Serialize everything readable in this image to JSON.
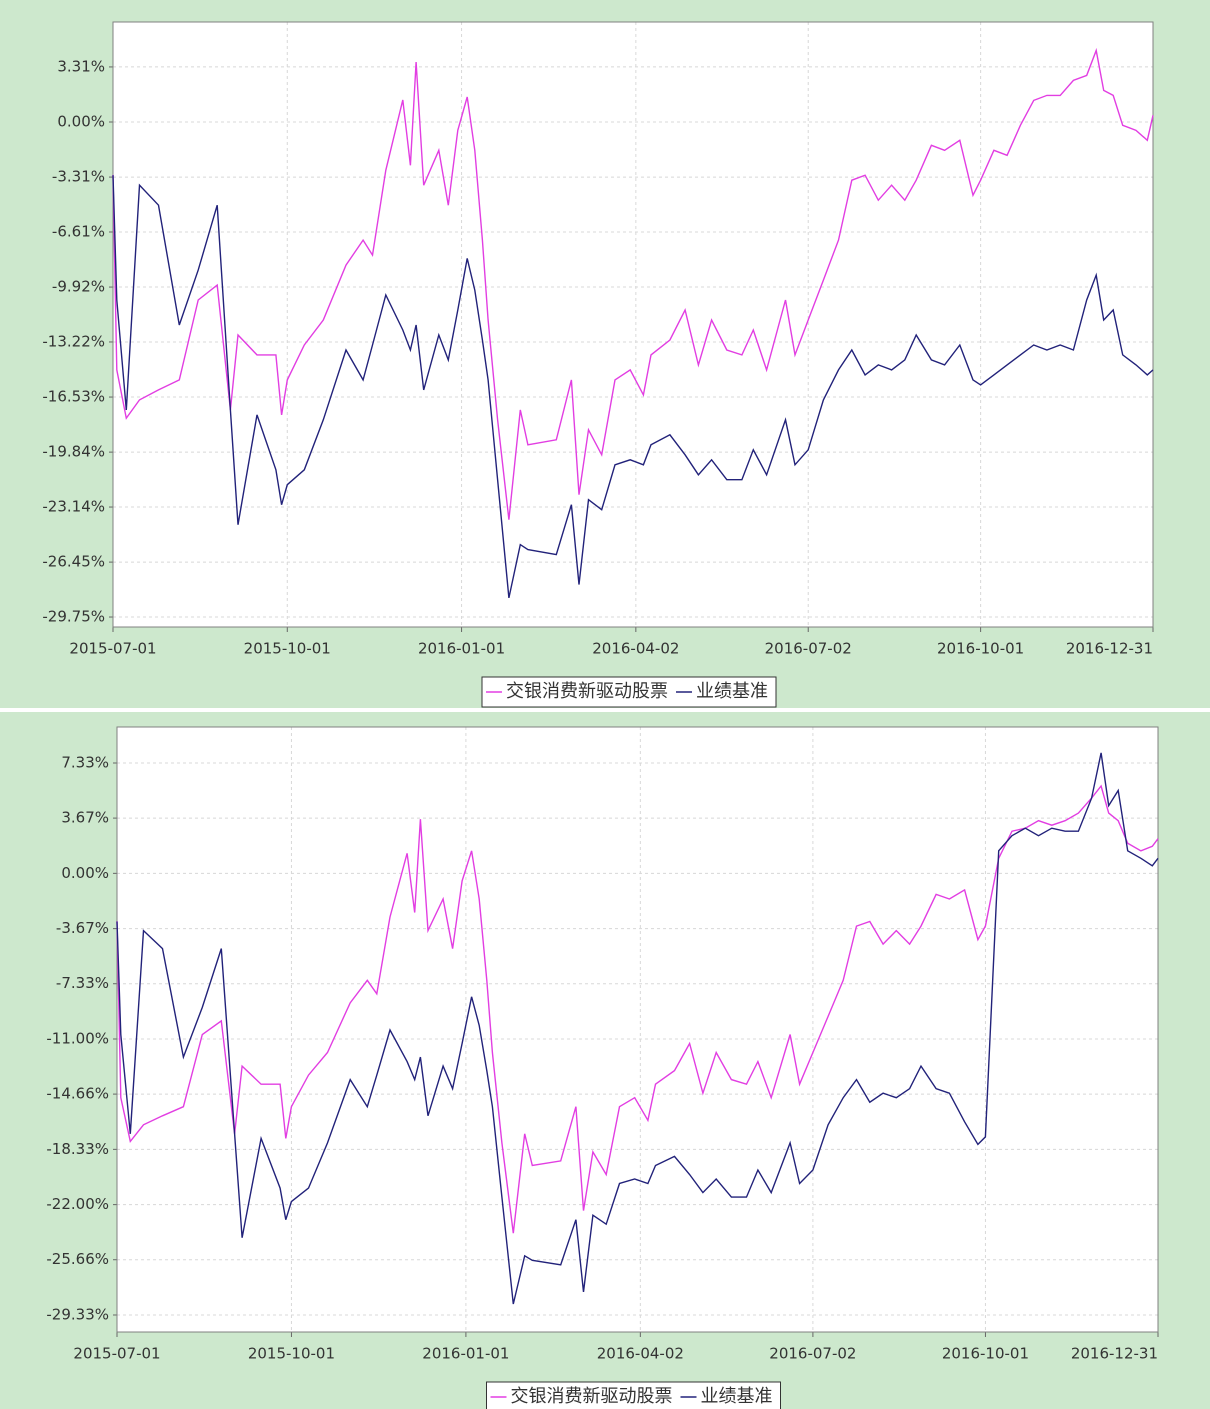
{
  "chart_data": [
    {
      "type": "line",
      "x": [
        "2015-07-01",
        "2015-07-03",
        "2015-07-08",
        "2015-07-15",
        "2015-07-25",
        "2015-08-05",
        "2015-08-15",
        "2015-08-25",
        "2015-09-01",
        "2015-09-05",
        "2015-09-15",
        "2015-09-25",
        "2015-09-28",
        "2015-10-01",
        "2015-10-10",
        "2015-10-20",
        "2015-11-01",
        "2015-11-10",
        "2015-11-15",
        "2015-11-22",
        "2015-12-01",
        "2015-12-05",
        "2015-12-08",
        "2015-12-12",
        "2015-12-20",
        "2015-12-25",
        "2015-12-30",
        "2016-01-04",
        "2016-01-08",
        "2016-01-12",
        "2016-01-15",
        "2016-01-20",
        "2016-01-26",
        "2016-02-01",
        "2016-02-05",
        "2016-02-20",
        "2016-02-28",
        "2016-03-03",
        "2016-03-08",
        "2016-03-15",
        "2016-03-22",
        "2016-03-30",
        "2016-04-06",
        "2016-04-10",
        "2016-04-20",
        "2016-04-28",
        "2016-05-05",
        "2016-05-12",
        "2016-05-20",
        "2016-05-28",
        "2016-06-03",
        "2016-06-10",
        "2016-06-20",
        "2016-06-25",
        "2016-07-02",
        "2016-07-10",
        "2016-07-18",
        "2016-07-25",
        "2016-08-01",
        "2016-08-08",
        "2016-08-15",
        "2016-08-22",
        "2016-08-28",
        "2016-09-05",
        "2016-09-12",
        "2016-09-20",
        "2016-09-27",
        "2016-10-01",
        "2016-10-08",
        "2016-10-15",
        "2016-10-22",
        "2016-10-29",
        "2016-11-05",
        "2016-11-12",
        "2016-11-19",
        "2016-11-26",
        "2016-12-01",
        "2016-12-05",
        "2016-12-10",
        "2016-12-15",
        "2016-12-22",
        "2016-12-28",
        "2016-12-31"
      ],
      "series": [
        {
          "name": "交银消费新驱动股票",
          "color": "#e23ee2",
          "values": [
            -3.18,
            -14.9,
            -17.8,
            -16.7,
            -16.1,
            -15.5,
            -10.7,
            -9.8,
            -17.3,
            -12.8,
            -14.0,
            -14.0,
            -17.6,
            -15.5,
            -13.4,
            -11.9,
            -8.6,
            -7.1,
            -8.0,
            -2.9,
            1.33,
            -2.6,
            3.6,
            -3.8,
            -1.7,
            -5.0,
            -0.5,
            1.5,
            -1.7,
            -7.1,
            -11.9,
            -17.9,
            -23.9,
            -17.3,
            -19.4,
            -19.1,
            -15.5,
            -22.4,
            -18.5,
            -20.0,
            -15.5,
            -14.9,
            -16.4,
            -14.0,
            -13.1,
            -11.3,
            -14.6,
            -11.9,
            -13.7,
            -14.0,
            -12.5,
            -14.9,
            -10.7,
            -14.0,
            -11.9,
            -9.5,
            -7.1,
            -3.5,
            -3.2,
            -4.7,
            -3.8,
            -4.7,
            -3.5,
            -1.4,
            -1.7,
            -1.1,
            -4.4,
            -3.5,
            -1.7,
            -2.0,
            -0.2,
            1.3,
            1.6,
            1.6,
            2.5,
            2.8,
            4.3,
            1.9,
            1.6,
            -0.2,
            -0.5,
            -1.1,
            0.4
          ]
        },
        {
          "name": "业绩基准",
          "color": "#22227a",
          "values": [
            -3.2,
            -10.7,
            -17.3,
            -3.8,
            -5.0,
            -12.2,
            -8.9,
            -5.0,
            -17.3,
            -24.2,
            -17.6,
            -20.9,
            -23.0,
            -21.8,
            -20.9,
            -17.9,
            -13.7,
            -15.5,
            -13.4,
            -10.4,
            -12.5,
            -13.7,
            -12.2,
            -16.1,
            -12.8,
            -14.3,
            -11.3,
            -8.2,
            -10.1,
            -13.1,
            -15.5,
            -21.5,
            -28.6,
            -25.4,
            -25.7,
            -26.0,
            -23.0,
            -27.8,
            -22.7,
            -23.3,
            -20.6,
            -20.3,
            -20.6,
            -19.4,
            -18.8,
            -20.0,
            -21.2,
            -20.3,
            -21.5,
            -21.5,
            -19.7,
            -21.2,
            -17.9,
            -20.6,
            -19.7,
            -16.7,
            -14.9,
            -13.7,
            -15.2,
            -14.6,
            -14.9,
            -14.3,
            -12.8,
            -14.3,
            -14.6,
            -13.4,
            -15.5,
            -15.8,
            -15.2,
            -14.6,
            -14.0,
            -13.4,
            -13.7,
            -13.4,
            -13.7,
            -10.7,
            -9.2,
            -11.9,
            -11.3,
            -14.0,
            -14.6,
            -15.2,
            -14.9
          ]
        }
      ],
      "xlim": [
        "2015-07-01",
        "2016-12-31"
      ],
      "xticks": [
        "2015-07-01",
        "2015-10-01",
        "2016-01-01",
        "2016-04-02",
        "2016-07-02",
        "2016-10-01",
        "2016-12-31"
      ],
      "ylim": [
        -30.35,
        6.01
      ],
      "yticks": [
        {
          "value": 3.31,
          "label": "3.31%"
        },
        {
          "value": 0,
          "label": "0.00%"
        },
        {
          "value": -3.31,
          "label": "-3.31%"
        },
        {
          "value": -6.61,
          "label": "-6.61%"
        },
        {
          "value": -9.92,
          "label": "-9.92%"
        },
        {
          "value": -13.22,
          "label": "-13.22%"
        },
        {
          "value": -16.53,
          "label": "-16.53%"
        },
        {
          "value": -19.84,
          "label": "-19.84%"
        },
        {
          "value": -23.14,
          "label": "-23.14%"
        },
        {
          "value": -26.45,
          "label": "-26.45%"
        },
        {
          "value": -29.75,
          "label": "-29.75%"
        }
      ],
      "grid": true,
      "legend": "bottom"
    },
    {
      "type": "line",
      "x": [
        "2015-07-01",
        "2015-07-03",
        "2015-07-08",
        "2015-07-15",
        "2015-07-25",
        "2015-08-05",
        "2015-08-15",
        "2015-08-25",
        "2015-09-01",
        "2015-09-05",
        "2015-09-15",
        "2015-09-25",
        "2015-09-28",
        "2015-10-01",
        "2015-10-10",
        "2015-10-20",
        "2015-11-01",
        "2015-11-10",
        "2015-11-15",
        "2015-11-22",
        "2015-12-01",
        "2015-12-05",
        "2015-12-08",
        "2015-12-12",
        "2015-12-20",
        "2015-12-25",
        "2015-12-30",
        "2016-01-04",
        "2016-01-08",
        "2016-01-12",
        "2016-01-15",
        "2016-01-20",
        "2016-01-26",
        "2016-02-01",
        "2016-02-05",
        "2016-02-20",
        "2016-02-28",
        "2016-03-03",
        "2016-03-08",
        "2016-03-15",
        "2016-03-22",
        "2016-03-30",
        "2016-04-06",
        "2016-04-10",
        "2016-04-20",
        "2016-04-28",
        "2016-05-05",
        "2016-05-12",
        "2016-05-20",
        "2016-05-28",
        "2016-06-03",
        "2016-06-10",
        "2016-06-20",
        "2016-06-25",
        "2016-07-02",
        "2016-07-10",
        "2016-07-18",
        "2016-07-25",
        "2016-08-01",
        "2016-08-08",
        "2016-08-15",
        "2016-08-22",
        "2016-08-28",
        "2016-09-05",
        "2016-09-12",
        "2016-09-20",
        "2016-09-27",
        "2016-10-01",
        "2016-10-08",
        "2016-10-15",
        "2016-10-22",
        "2016-10-29",
        "2016-11-05",
        "2016-11-12",
        "2016-11-19",
        "2016-11-26",
        "2016-12-01",
        "2016-12-05",
        "2016-12-10",
        "2016-12-15",
        "2016-12-22",
        "2016-12-28",
        "2016-12-31"
      ],
      "series": [
        {
          "name": "交银消费新驱动股票",
          "color": "#e23ee2",
          "values": [
            -3.18,
            -14.9,
            -17.8,
            -16.7,
            -16.1,
            -15.5,
            -10.7,
            -9.8,
            -17.3,
            -12.8,
            -14.0,
            -14.0,
            -17.6,
            -15.5,
            -13.4,
            -11.9,
            -8.6,
            -7.1,
            -8.0,
            -2.9,
            1.33,
            -2.6,
            3.6,
            -3.8,
            -1.7,
            -5.0,
            -0.5,
            1.5,
            -1.7,
            -7.1,
            -11.9,
            -17.9,
            -23.9,
            -17.3,
            -19.4,
            -19.1,
            -15.5,
            -22.4,
            -18.5,
            -20.0,
            -15.5,
            -14.9,
            -16.4,
            -14.0,
            -13.1,
            -11.3,
            -14.6,
            -11.9,
            -13.7,
            -14.0,
            -12.5,
            -14.9,
            -10.7,
            -14.0,
            -11.9,
            -9.5,
            -7.1,
            -3.5,
            -3.2,
            -4.7,
            -3.8,
            -4.7,
            -3.5,
            -1.4,
            -1.7,
            -1.1,
            -4.4,
            -3.5,
            1.0,
            2.8,
            3.0,
            3.5,
            3.2,
            3.5,
            4.0,
            5.0,
            5.8,
            4.0,
            3.5,
            2.0,
            1.5,
            1.8,
            2.3
          ]
        },
        {
          "name": "业绩基准",
          "color": "#22227a",
          "values": [
            -3.2,
            -10.7,
            -17.3,
            -3.8,
            -5.0,
            -12.2,
            -8.9,
            -5.0,
            -17.3,
            -24.2,
            -17.6,
            -20.9,
            -23.0,
            -21.8,
            -20.9,
            -17.9,
            -13.7,
            -15.5,
            -13.4,
            -10.4,
            -12.5,
            -13.7,
            -12.2,
            -16.1,
            -12.8,
            -14.3,
            -11.3,
            -8.2,
            -10.1,
            -13.1,
            -15.5,
            -21.5,
            -28.6,
            -25.4,
            -25.7,
            -26.0,
            -23.0,
            -27.8,
            -22.7,
            -23.3,
            -20.6,
            -20.3,
            -20.6,
            -19.4,
            -18.8,
            -20.0,
            -21.2,
            -20.3,
            -21.5,
            -21.5,
            -19.7,
            -21.2,
            -17.9,
            -20.6,
            -19.7,
            -16.7,
            -14.9,
            -13.7,
            -15.2,
            -14.6,
            -14.9,
            -14.3,
            -12.8,
            -14.3,
            -14.6,
            -16.5,
            -18.0,
            -17.5,
            1.5,
            2.5,
            3.0,
            2.5,
            3.0,
            2.8,
            2.8,
            5.0,
            8.0,
            4.5,
            5.5,
            1.5,
            1.0,
            0.5,
            1.0
          ]
        }
      ],
      "xlim": [
        "2015-07-01",
        "2016-12-31"
      ],
      "xticks": [
        "2015-07-01",
        "2015-10-01",
        "2016-01-01",
        "2016-04-02",
        "2016-07-02",
        "2016-10-01",
        "2016-12-31"
      ],
      "ylim": [
        -30.46,
        9.72
      ],
      "yticks": [
        {
          "value": 7.33,
          "label": "7.33%"
        },
        {
          "value": 3.67,
          "label": "3.67%"
        },
        {
          "value": 0,
          "label": "0.00%"
        },
        {
          "value": -3.67,
          "label": "-3.67%"
        },
        {
          "value": -7.33,
          "label": "-7.33%"
        },
        {
          "value": -11.0,
          "label": "-11.00%"
        },
        {
          "value": -14.66,
          "label": "-14.66%"
        },
        {
          "value": -18.33,
          "label": "-18.33%"
        },
        {
          "value": -22.0,
          "label": "-22.00%"
        },
        {
          "value": -25.66,
          "label": "-25.66%"
        },
        {
          "value": -29.33,
          "label": "-29.33%"
        }
      ],
      "grid": true,
      "legend": "bottom"
    }
  ]
}
